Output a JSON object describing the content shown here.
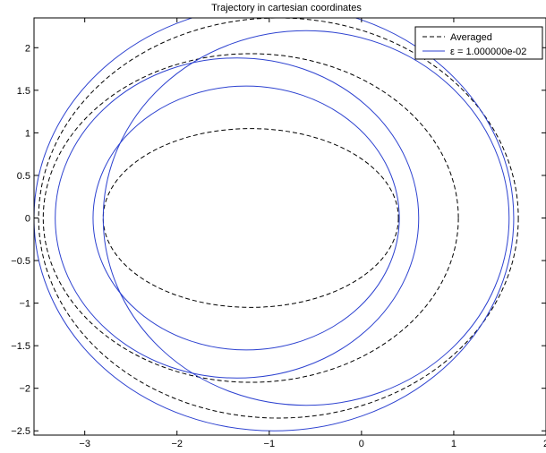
{
  "chart_data": {
    "type": "line",
    "title": "Trajectory in cartesian coordinates",
    "xlabel": "",
    "ylabel": "",
    "xlim": [
      -3.55,
      2.0
    ],
    "ylim": [
      -2.55,
      2.35
    ],
    "x_ticks": [
      -3,
      -2,
      -1,
      0,
      1,
      2
    ],
    "y_ticks": [
      -2.5,
      -2,
      -1.5,
      -1,
      -0.5,
      0,
      0.5,
      1,
      1.5,
      2
    ],
    "x_tick_labels": [
      "−3",
      "−2",
      "−1",
      "0",
      "1",
      "2"
    ],
    "y_tick_labels": [
      "−2.5",
      "−2",
      "−1.5",
      "−1",
      "−0.5",
      "0",
      "0.5",
      "1",
      "1.5",
      "2"
    ],
    "grid": false,
    "legend_position": "top-right",
    "series": [
      {
        "name": "Averaged",
        "style": "dashed",
        "color": "#000000",
        "loops": [
          {
            "center": [
              -1.2,
              0
            ],
            "semi_axis_x": 1.6,
            "semi_axis_y": 1.05
          },
          {
            "center": [
              -1.2,
              0
            ],
            "semi_axis_x": 2.25,
            "semi_axis_y": 1.93
          },
          {
            "center": [
              -0.9,
              0
            ],
            "semi_axis_x": 2.6,
            "semi_axis_y": 2.35
          }
        ]
      },
      {
        "name": "ε = 1.000000e-02",
        "style": "solid",
        "color": "#2d42d0",
        "loops": [
          {
            "center": [
              -1.25,
              0
            ],
            "semi_axis_x": 1.66,
            "semi_axis_y": 1.55
          },
          {
            "center": [
              -1.35,
              0
            ],
            "semi_axis_x": 1.97,
            "semi_axis_y": 1.88
          },
          {
            "center": [
              -0.95,
              0
            ],
            "semi_axis_x": 2.6,
            "semi_axis_y": 2.5
          },
          {
            "center": [
              -0.6,
              0
            ],
            "semi_axis_x": 2.2,
            "semi_axis_y": 2.2
          }
        ]
      }
    ]
  }
}
